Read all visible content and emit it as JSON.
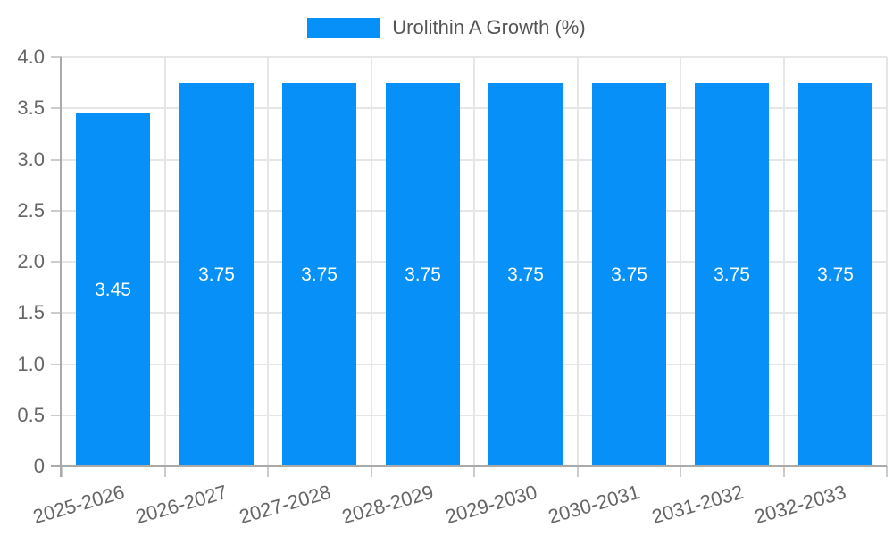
{
  "legend": {
    "label": "Urolithin A Growth (%)"
  },
  "chart_data": {
    "type": "bar",
    "categories": [
      "2025-2026",
      "2026-2027",
      "2027-2028",
      "2028-2029",
      "2029-2030",
      "2030-2031",
      "2031-2032",
      "2032-2033"
    ],
    "series": [
      {
        "name": "Urolithin A Growth (%)",
        "values": [
          3.45,
          3.75,
          3.75,
          3.75,
          3.75,
          3.75,
          3.75,
          3.75
        ]
      }
    ],
    "value_labels": [
      "3.45",
      "3.75",
      "3.75",
      "3.75",
      "3.75",
      "3.75",
      "3.75",
      "3.75"
    ],
    "xlabel": "",
    "ylabel": "",
    "ylim": [
      0,
      4.0
    ],
    "ytick_step": 0.5,
    "ytick_labels": [
      "0",
      "0.5",
      "1.0",
      "1.5",
      "2.0",
      "2.5",
      "3.0",
      "3.5",
      "4.0"
    ],
    "grid": true,
    "legend_position": "top",
    "value_label_position": "inside-center",
    "x_label_rotation_deg": 16
  },
  "colors": {
    "bar": "#0690F8",
    "grid": "#e6e6e6",
    "axis": "#aaaaaa",
    "tick_mark": "#cccccc",
    "tick_label": "#666666",
    "legend_text": "#555555",
    "value_label": "#ffffff",
    "background": "#ffffff"
  }
}
